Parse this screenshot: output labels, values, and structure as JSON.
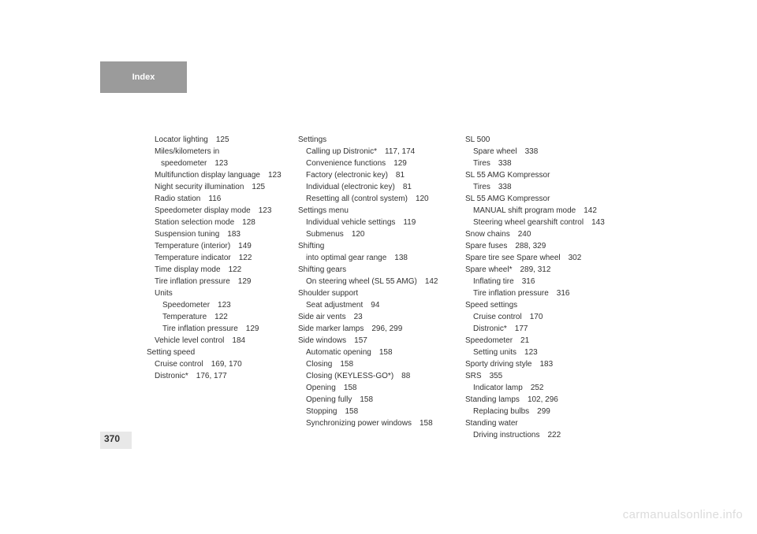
{
  "header": "Index",
  "pageNumber": "370",
  "watermark": "carmanualsonline.info",
  "col1": [
    {
      "indent": "i1",
      "text": "Locator lighting",
      "pages": "125"
    },
    {
      "indent": "i1",
      "text": "Miles/kilometers in"
    },
    {
      "indent": "i1a",
      "text": "speedometer",
      "pages": "123"
    },
    {
      "indent": "i1",
      "text": "Multifunction display language",
      "pages": "123"
    },
    {
      "indent": "i1",
      "text": "Night security illumination",
      "pages": "125"
    },
    {
      "indent": "i1",
      "text": "Radio station",
      "pages": "116"
    },
    {
      "indent": "i1",
      "text": "Speedometer display mode",
      "pages": "123"
    },
    {
      "indent": "i1",
      "text": "Station selection mode",
      "pages": "128"
    },
    {
      "indent": "i1",
      "text": "Suspension tuning",
      "pages": "183"
    },
    {
      "indent": "i1",
      "text": "Temperature (interior)",
      "pages": "149"
    },
    {
      "indent": "i1",
      "text": "Temperature indicator",
      "pages": "122"
    },
    {
      "indent": "i1",
      "text": "Time display mode",
      "pages": "122"
    },
    {
      "indent": "i1",
      "text": "Tire inflation pressure",
      "pages": "129"
    },
    {
      "indent": "i1",
      "text": "Units"
    },
    {
      "indent": "i2",
      "text": "Speedometer",
      "pages": "123"
    },
    {
      "indent": "i2",
      "text": "Temperature",
      "pages": "122"
    },
    {
      "indent": "i2",
      "text": "Tire inflation pressure",
      "pages": "129"
    },
    {
      "indent": "i1",
      "text": "Vehicle level control",
      "pages": "184"
    },
    {
      "indent": "",
      "text": "Setting speed"
    },
    {
      "indent": "i1",
      "text": "Cruise control",
      "pages": "169, 170"
    },
    {
      "indent": "i1",
      "text": "Distronic*",
      "pages": "176, 177"
    }
  ],
  "col2": [
    {
      "indent": "",
      "text": "Settings"
    },
    {
      "indent": "i1",
      "text": "Calling up Distronic*",
      "pages": "117, 174"
    },
    {
      "indent": "i1",
      "text": "Convenience functions",
      "pages": "129"
    },
    {
      "indent": "i1",
      "text": "Factory (electronic key)",
      "pages": "81"
    },
    {
      "indent": "i1",
      "text": "Individual (electronic key)",
      "pages": "81"
    },
    {
      "indent": "i1",
      "text": "Resetting all (control system)",
      "pages": "120"
    },
    {
      "indent": "",
      "text": "Settings menu"
    },
    {
      "indent": "i1",
      "text": "Individual vehicle settings",
      "pages": "119"
    },
    {
      "indent": "i1",
      "text": "Submenus",
      "pages": "120"
    },
    {
      "indent": "",
      "text": "Shifting"
    },
    {
      "indent": "i1",
      "text": "into optimal gear range",
      "pages": "138"
    },
    {
      "indent": "",
      "text": "Shifting gears"
    },
    {
      "indent": "i1",
      "text": "On steering wheel (SL 55 AMG)",
      "pages": "142"
    },
    {
      "indent": "",
      "text": "Shoulder support"
    },
    {
      "indent": "i1",
      "text": "Seat adjustment",
      "pages": "94"
    },
    {
      "indent": "",
      "text": "Side air vents",
      "pages": "23"
    },
    {
      "indent": "",
      "text": "Side marker lamps",
      "pages": "296, 299"
    },
    {
      "indent": "",
      "text": "Side windows",
      "pages": "157"
    },
    {
      "indent": "i1",
      "text": "Automatic opening",
      "pages": "158"
    },
    {
      "indent": "i1",
      "text": "Closing",
      "pages": "158"
    },
    {
      "indent": "i1",
      "text": "Closing (KEYLESS-GO*)",
      "pages": "88"
    },
    {
      "indent": "i1",
      "text": "Opening",
      "pages": "158"
    },
    {
      "indent": "i1",
      "text": "Opening fully",
      "pages": "158"
    },
    {
      "indent": "i1",
      "text": "Stopping",
      "pages": "158"
    },
    {
      "indent": "i1",
      "text": "Synchronizing power windows",
      "pages": "158"
    }
  ],
  "col3": [
    {
      "indent": "",
      "text": "SL 500"
    },
    {
      "indent": "i1",
      "text": "Spare wheel",
      "pages": "338"
    },
    {
      "indent": "i1",
      "text": "Tires",
      "pages": "338"
    },
    {
      "indent": "",
      "text": "SL 55 AMG Kompressor"
    },
    {
      "indent": "i1",
      "text": "Tires",
      "pages": "338"
    },
    {
      "indent": "",
      "text": "SL 55 AMG Kompressor"
    },
    {
      "indent": "i1",
      "text": "MANUAL shift program mode",
      "pages": "142"
    },
    {
      "indent": "i1",
      "text": "Steering wheel gearshift control",
      "pages": "143"
    },
    {
      "indent": "",
      "text": "Snow chains",
      "pages": "240"
    },
    {
      "indent": "",
      "text": "Spare fuses",
      "pages": "288, 329"
    },
    {
      "indent": "",
      "text": "Spare tire see Spare wheel",
      "pages": "302"
    },
    {
      "indent": "",
      "text": "Spare wheel*",
      "pages": "289, 312"
    },
    {
      "indent": "i1",
      "text": "Inflating tire",
      "pages": "316"
    },
    {
      "indent": "i1",
      "text": "Tire inflation pressure",
      "pages": "316"
    },
    {
      "indent": "",
      "text": "Speed settings"
    },
    {
      "indent": "i1",
      "text": "Cruise control",
      "pages": "170"
    },
    {
      "indent": "i1",
      "text": "Distronic*",
      "pages": "177"
    },
    {
      "indent": "",
      "text": "Speedometer",
      "pages": "21"
    },
    {
      "indent": "i1",
      "text": "Setting units",
      "pages": "123"
    },
    {
      "indent": "",
      "text": "Sporty driving style",
      "pages": "183"
    },
    {
      "indent": "",
      "text": "SRS",
      "pages": "355"
    },
    {
      "indent": "i1",
      "text": "Indicator lamp",
      "pages": "252"
    },
    {
      "indent": "",
      "text": "Standing lamps",
      "pages": "102, 296"
    },
    {
      "indent": "i1",
      "text": "Replacing bulbs",
      "pages": "299"
    },
    {
      "indent": "",
      "text": "Standing water"
    },
    {
      "indent": "i1",
      "text": "Driving instructions",
      "pages": "222"
    }
  ]
}
